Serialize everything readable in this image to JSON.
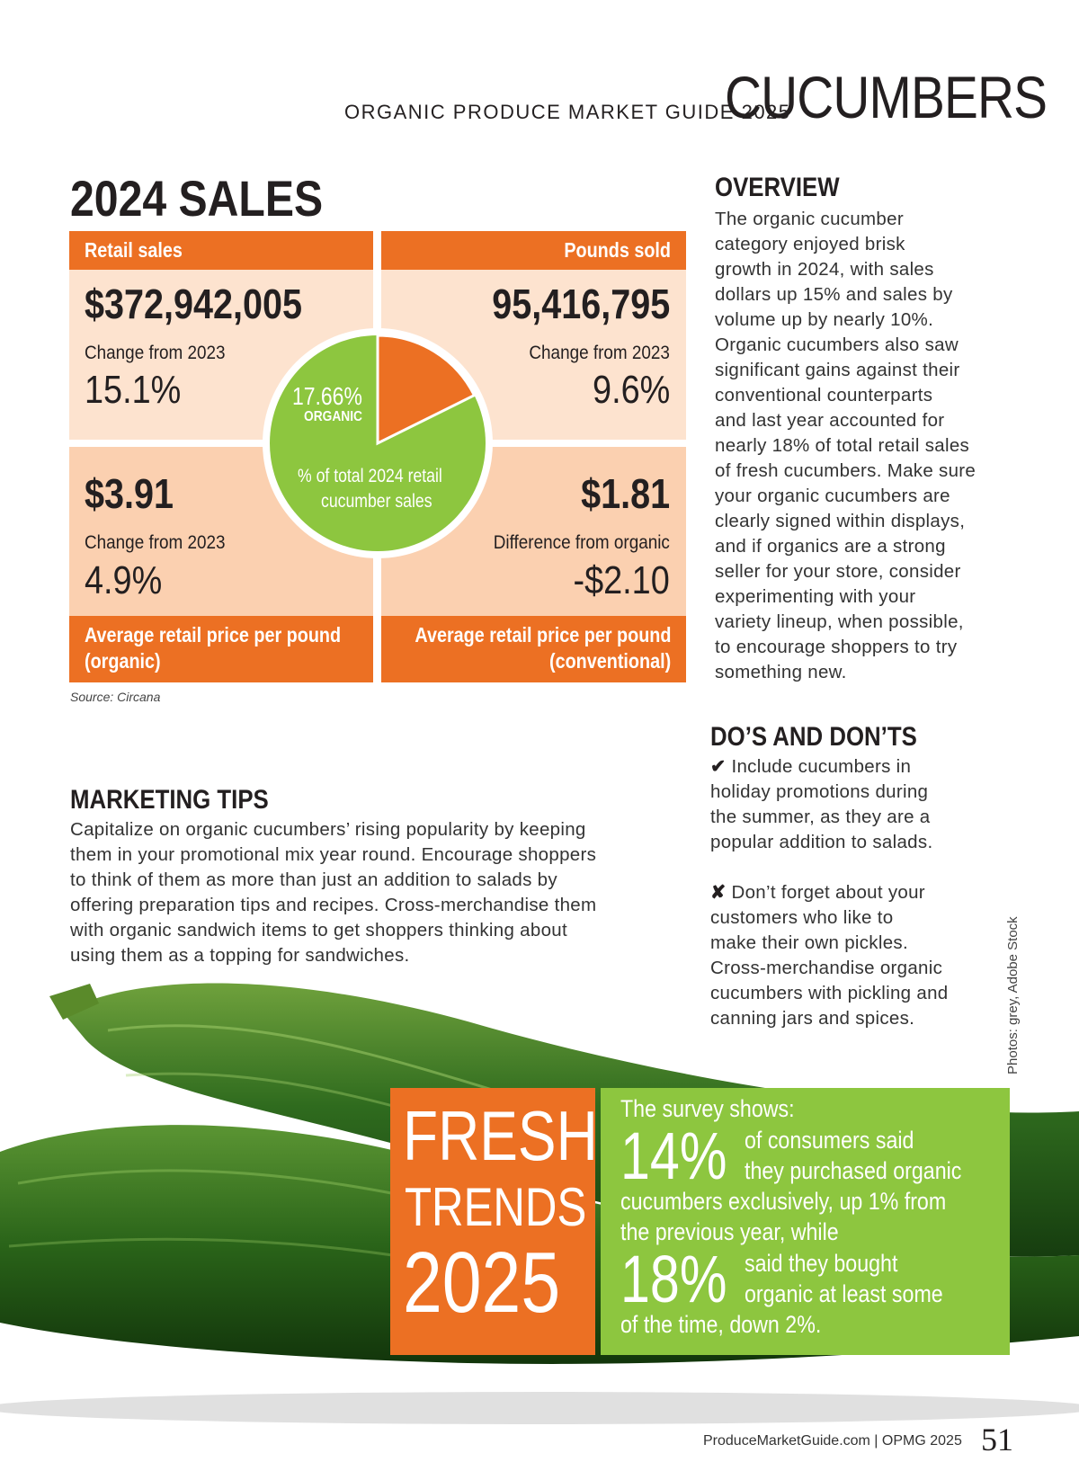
{
  "header": {
    "guide": "ORGANIC PRODUCE MARKET GUIDE 2025",
    "title": "CUCUMBERS"
  },
  "sales": {
    "heading": "2024 SALES",
    "retail": {
      "label": "Retail sales",
      "value": "$372,942,005",
      "change_label": "Change from 2023",
      "change": "15.1%"
    },
    "pounds": {
      "label": "Pounds sold",
      "value": "95,416,795",
      "change_label": "Change from 2023",
      "change": "9.6%"
    },
    "organic_price": {
      "value": "$3.91",
      "change_label": "Change from 2023",
      "change": "4.9%",
      "label_line1": "Average retail price per pound",
      "label_line2": "(organic)"
    },
    "conventional_price": {
      "value": "$1.81",
      "change_label": "Difference from organic",
      "change": "-$2.10",
      "label_line1": "Average retail price per pound",
      "label_line2": "(conventional)"
    },
    "pie": {
      "percent": "17.66%",
      "percent_value": 17.66,
      "sub": "ORGANIC",
      "caption_line1": "% of total 2024 retail",
      "caption_line2": "cucumber sales"
    },
    "source": "Source: Circana"
  },
  "colors": {
    "orange": "#ec7023",
    "peach_light": "#fde3cf",
    "peach_mid": "#fbd0b0",
    "green": "#8dc63f"
  },
  "overview": {
    "heading": "OVERVIEW",
    "lines": [
      "The organic cucumber",
      "category enjoyed brisk",
      "growth in 2024, with sales",
      "dollars up 15% and sales by",
      "volume up by nearly 10%.",
      "Organic cucumbers also saw",
      "significant gains against their",
      "conventional counterparts",
      "and last year accounted for",
      "nearly 18% of total retail sales",
      "of fresh cucumbers. Make sure",
      "your organic cucumbers are",
      "clearly signed within displays,",
      "and if organics are a strong",
      "seller for your store, consider",
      "experimenting with your",
      "variety lineup, when possible,",
      "to encourage shoppers to try",
      "something new."
    ]
  },
  "marketing": {
    "heading": "MARKETING TIPS",
    "lines": [
      "Capitalize on organic cucumbers’ rising popularity by keeping",
      "them in your promotional mix year round. Encourage shoppers",
      "to think of them as more than just an addition to salads by",
      "offering preparation tips and recipes. Cross-merchandise them",
      "with organic sandwich items to get shoppers thinking about",
      "using them as a topping for sandwiches."
    ]
  },
  "dos": {
    "heading": "DO’S AND DON’TS",
    "do_icon": "✔",
    "do_lines": [
      "Include cucumbers in",
      "holiday promotions during",
      "the summer, as they are a",
      "popular addition to salads."
    ],
    "dont_icon": "✘",
    "dont_lines": [
      "Don’t forget about your",
      "customers who like to",
      "make their own pickles.",
      "Cross-merchandise organic",
      "cucumbers with pickling and",
      "canning jars and spices."
    ]
  },
  "photo_credit": "Photos: grey, Adobe Stock",
  "trends": {
    "word1": "FRESH",
    "word2": "TRENDS",
    "year": "2025",
    "intro": "The survey shows:",
    "stat1": "14%",
    "stat1_l1": "of consumers said",
    "stat1_l2": "they purchased organic",
    "mid1": "cucumbers exclusively, up 1% from",
    "mid2": "the previous year, while",
    "stat2": "18%",
    "stat2_l1": "said they bought",
    "stat2_l2": "organic at least some",
    "end": "of the time, down 2%."
  },
  "footer": {
    "text": "ProduceMarketGuide.com | OPMG 2025",
    "page": "51"
  }
}
